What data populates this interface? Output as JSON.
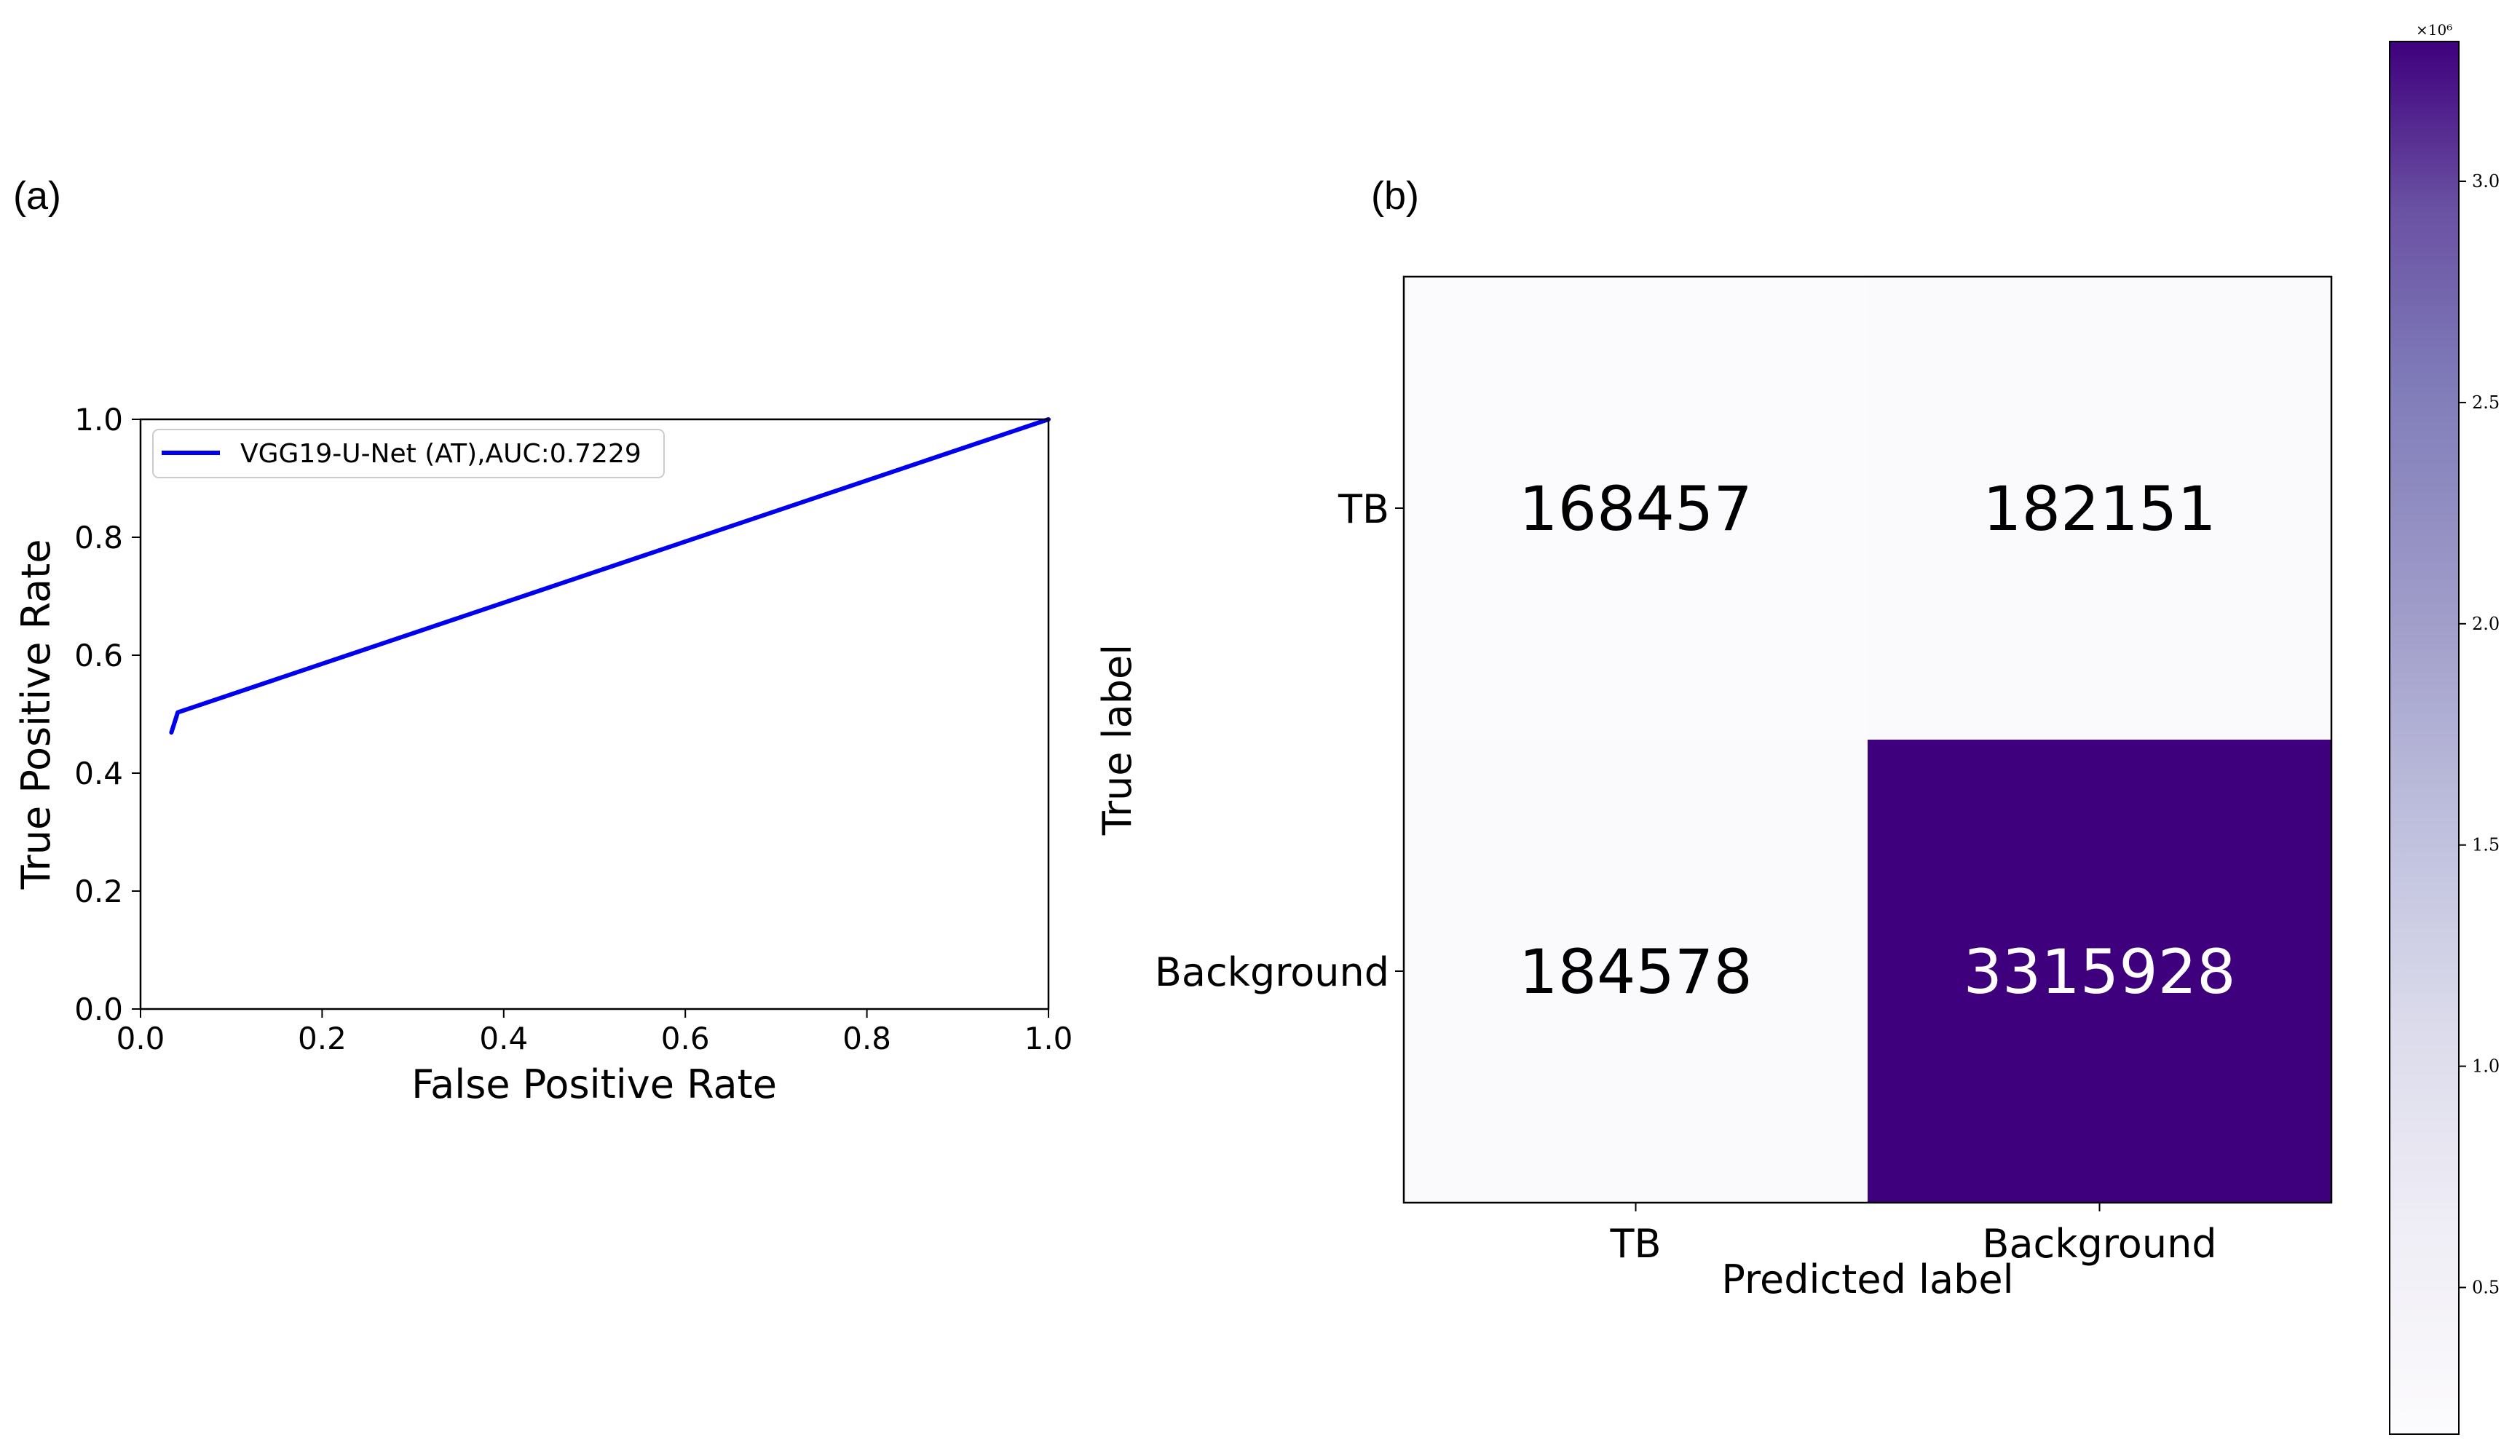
{
  "panels": {
    "a": "(a)",
    "b": "(b)"
  },
  "chart_data": [
    {
      "type": "line",
      "xlabel": "False Positive Rate",
      "ylabel": "True Positive Rate",
      "xlim": [
        0.0,
        1.0
      ],
      "ylim": [
        0.0,
        1.0
      ],
      "xticks": [
        "0.0",
        "0.2",
        "0.4",
        "0.6",
        "0.8",
        "1.0"
      ],
      "yticks": [
        "0.0",
        "0.2",
        "0.4",
        "0.6",
        "0.8",
        "1.0"
      ],
      "legend_position": "top-left",
      "series": [
        {
          "name": "VGG19-U-Net (AT),AUC:0.7229",
          "color": "#0000ee",
          "x": [
            0.034,
            0.041,
            1.0
          ],
          "y": [
            0.469,
            0.503,
            1.0
          ]
        }
      ]
    },
    {
      "type": "heatmap",
      "xlabel": "Predicted label",
      "ylabel": "True label",
      "x_categories": [
        "TB",
        "Background"
      ],
      "y_categories": [
        "TB",
        "Background"
      ],
      "values": [
        [
          168457,
          182151
        ],
        [
          184578,
          3315928
        ]
      ],
      "value_labels": [
        [
          "168457",
          "182151"
        ],
        [
          "184578",
          "3315928"
        ]
      ],
      "colormap": "Purples",
      "colorbar": {
        "multiplier": "×10⁶",
        "ticks": [
          "0.5",
          "1.0",
          "1.5",
          "2.0",
          "2.5",
          "3.0"
        ],
        "tick_values": [
          500000,
          1000000,
          1500000,
          2000000,
          2500000,
          3000000
        ],
        "min": 168457,
        "max": 3315928,
        "color_low": "#fbfafd",
        "color_high": "#3f007d"
      }
    }
  ]
}
